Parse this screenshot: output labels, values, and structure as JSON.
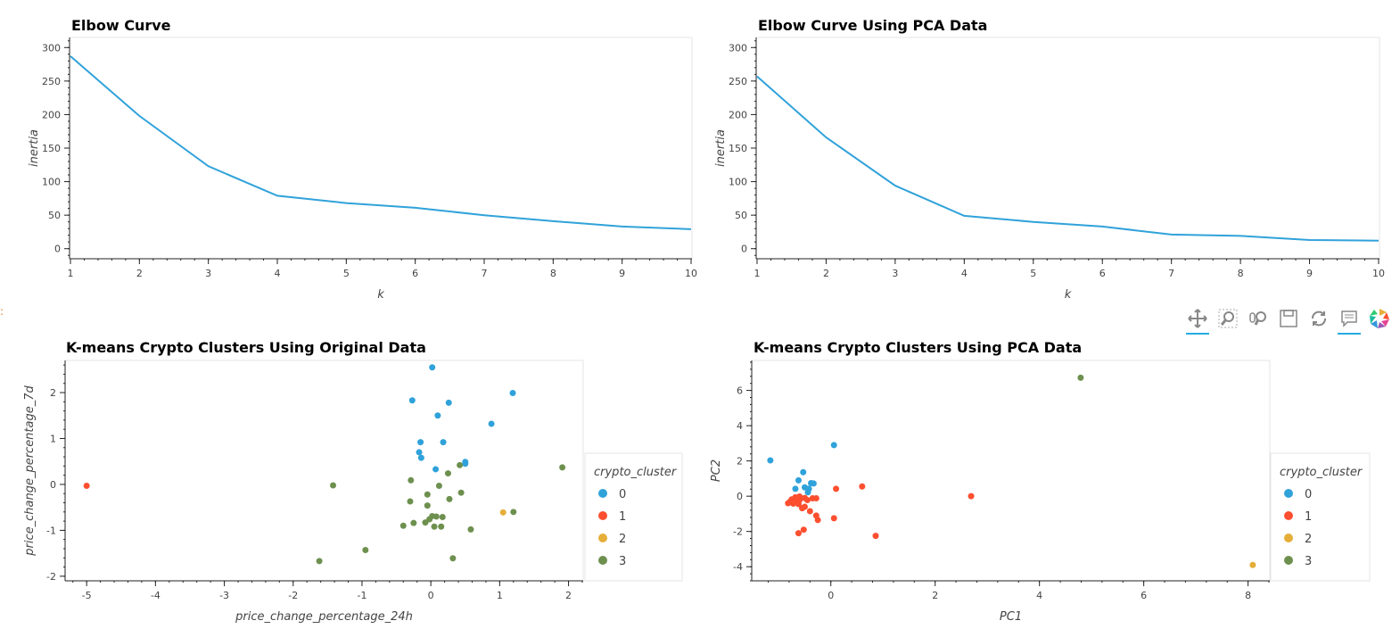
{
  "chart_data": [
    {
      "type": "line",
      "title": "Elbow Curve",
      "xlabel": "k",
      "ylabel": "inertia",
      "x": [
        1,
        2,
        3,
        4,
        5,
        6,
        7,
        8,
        9,
        10
      ],
      "y": [
        287,
        198,
        123,
        79,
        68,
        61,
        50,
        41,
        33,
        29
      ],
      "xlim": [
        1,
        10
      ],
      "ylim": [
        -15,
        315
      ],
      "xticks": [
        1,
        2,
        3,
        4,
        5,
        6,
        7,
        8,
        9,
        10
      ],
      "yticks": [
        0,
        50,
        100,
        150,
        200,
        250,
        300
      ],
      "color": "#30a2da"
    },
    {
      "type": "line",
      "title": "Elbow Curve Using PCA Data",
      "xlabel": "k",
      "ylabel": "inertia",
      "x": [
        1,
        2,
        3,
        4,
        5,
        6,
        7,
        8,
        9,
        10
      ],
      "y": [
        257,
        166,
        94,
        49,
        40,
        33,
        21,
        19,
        13,
        12
      ],
      "xlim": [
        1,
        10
      ],
      "ylim": [
        -15,
        315
      ],
      "xticks": [
        1,
        2,
        3,
        4,
        5,
        6,
        7,
        8,
        9,
        10
      ],
      "yticks": [
        0,
        50,
        100,
        150,
        200,
        250,
        300
      ],
      "color": "#30a2da"
    },
    {
      "type": "scatter",
      "title": "K-means Crypto Clusters Using Original Data",
      "xlabel": "price_change_percentage_24h",
      "ylabel": "price_change_percentage_7d",
      "xlim": [
        -5.3,
        2.2
      ],
      "ylim": [
        -2.1,
        2.7
      ],
      "xticks": [
        -5,
        -4,
        -3,
        -2,
        -1,
        0,
        1,
        2
      ],
      "yticks": [
        -2,
        -1,
        0,
        1,
        2
      ],
      "legend_title": "crypto_cluster",
      "series": [
        {
          "name": "0",
          "color": "#30a2da",
          "points": [
            [
              0.02,
              2.55
            ],
            [
              1.19,
              1.99
            ],
            [
              -0.27,
              1.83
            ],
            [
              0.26,
              1.78
            ],
            [
              0.1,
              1.5
            ],
            [
              0.88,
              1.32
            ],
            [
              -0.15,
              0.92
            ],
            [
              0.18,
              0.92
            ],
            [
              -0.17,
              0.7
            ],
            [
              -0.14,
              0.58
            ],
            [
              0.5,
              0.49
            ],
            [
              0.5,
              0.45
            ],
            [
              0.07,
              0.33
            ]
          ]
        },
        {
          "name": "1",
          "color": "#fc4f30",
          "points": [
            [
              -5.0,
              -0.03
            ]
          ]
        },
        {
          "name": "2",
          "color": "#e5ae38",
          "points": [
            [
              1.05,
              -0.61
            ]
          ]
        },
        {
          "name": "3",
          "color": "#6d904f",
          "points": [
            [
              1.91,
              0.37
            ],
            [
              0.42,
              0.42
            ],
            [
              0.25,
              0.24
            ],
            [
              -0.29,
              0.09
            ],
            [
              0.12,
              -0.03
            ],
            [
              -1.42,
              -0.02
            ],
            [
              0.44,
              -0.18
            ],
            [
              -0.05,
              -0.22
            ],
            [
              -0.3,
              -0.37
            ],
            [
              0.27,
              -0.32
            ],
            [
              -0.05,
              -0.46
            ],
            [
              0.02,
              -0.69
            ],
            [
              0.08,
              -0.7
            ],
            [
              0.17,
              -0.71
            ],
            [
              -0.02,
              -0.76
            ],
            [
              1.2,
              -0.6
            ],
            [
              -0.25,
              -0.84
            ],
            [
              -0.08,
              -0.83
            ],
            [
              -0.4,
              -0.9
            ],
            [
              0.05,
              -0.92
            ],
            [
              0.15,
              -0.92
            ],
            [
              0.58,
              -0.98
            ],
            [
              -0.95,
              -1.43
            ],
            [
              0.32,
              -1.61
            ],
            [
              -1.62,
              -1.67
            ]
          ]
        }
      ]
    },
    {
      "type": "scatter",
      "title": "K-means Crypto Clusters Using PCA Data",
      "xlabel": "PC1",
      "ylabel": "PC2",
      "xlim": [
        -1.5,
        8.4
      ],
      "ylim": [
        -4.8,
        7.7
      ],
      "xticks": [
        0,
        2,
        4,
        6,
        8
      ],
      "yticks": [
        -4,
        -2,
        0,
        2,
        4,
        6
      ],
      "legend_title": "crypto_cluster",
      "series": [
        {
          "name": "0",
          "color": "#30a2da",
          "points": [
            [
              -1.16,
              2.03
            ],
            [
              0.06,
              2.9
            ],
            [
              -0.53,
              1.36
            ],
            [
              -0.62,
              0.9
            ],
            [
              -0.38,
              0.74
            ],
            [
              -0.33,
              0.72
            ],
            [
              -0.5,
              0.5
            ],
            [
              -0.42,
              0.42
            ],
            [
              -0.68,
              0.42
            ],
            [
              -0.44,
              0.22
            ]
          ]
        },
        {
          "name": "1",
          "color": "#fc4f30",
          "points": [
            [
              0.6,
              0.55
            ],
            [
              0.1,
              0.42
            ],
            [
              2.69,
              0.0
            ],
            [
              -0.6,
              -0.02
            ],
            [
              -0.68,
              -0.06
            ],
            [
              -0.5,
              -0.1
            ],
            [
              -0.35,
              -0.12
            ],
            [
              -0.28,
              -0.12
            ],
            [
              -0.75,
              -0.18
            ],
            [
              -0.6,
              -0.22
            ],
            [
              -0.45,
              -0.22
            ],
            [
              -0.78,
              -0.3
            ],
            [
              -0.68,
              -0.32
            ],
            [
              -0.82,
              -0.4
            ],
            [
              -0.72,
              -0.42
            ],
            [
              -0.62,
              -0.45
            ],
            [
              -0.5,
              -0.6
            ],
            [
              -0.55,
              -0.68
            ],
            [
              -0.4,
              -0.85
            ],
            [
              -0.28,
              -1.1
            ],
            [
              0.06,
              -1.25
            ],
            [
              -0.25,
              -1.35
            ],
            [
              -0.52,
              -1.9
            ],
            [
              -0.62,
              -2.1
            ],
            [
              0.86,
              -2.25
            ]
          ]
        },
        {
          "name": "2",
          "color": "#e5ae38",
          "points": [
            [
              8.09,
              -3.9
            ]
          ]
        },
        {
          "name": "3",
          "color": "#6d904f",
          "points": [
            [
              4.79,
              6.72
            ]
          ]
        }
      ]
    }
  ],
  "toolbar": {
    "tools": [
      {
        "name": "pan-tool",
        "active": true
      },
      {
        "name": "box-zoom-tool",
        "active": false
      },
      {
        "name": "wheel-zoom-tool",
        "active": false
      },
      {
        "name": "save-tool",
        "active": false
      },
      {
        "name": "reset-tool",
        "active": false
      },
      {
        "name": "hover-tool",
        "active": true
      },
      {
        "name": "bokeh-logo",
        "active": false
      }
    ]
  }
}
